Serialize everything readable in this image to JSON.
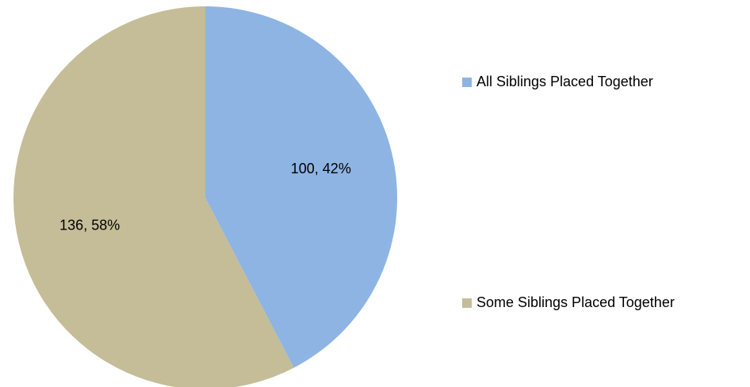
{
  "chart_data": {
    "type": "pie",
    "title": "",
    "categories": [
      "All Siblings Placed Together",
      "Some Siblings Placed Together"
    ],
    "values": [
      100,
      136
    ],
    "percentages": [
      "42%",
      "58%"
    ],
    "data_labels": [
      "100, 42%",
      "136, 58%"
    ],
    "colors": [
      "#8EB4E3",
      "#C4BD97"
    ],
    "start_angle_deg": 0,
    "direction": "clockwise",
    "legend_position": "right"
  }
}
